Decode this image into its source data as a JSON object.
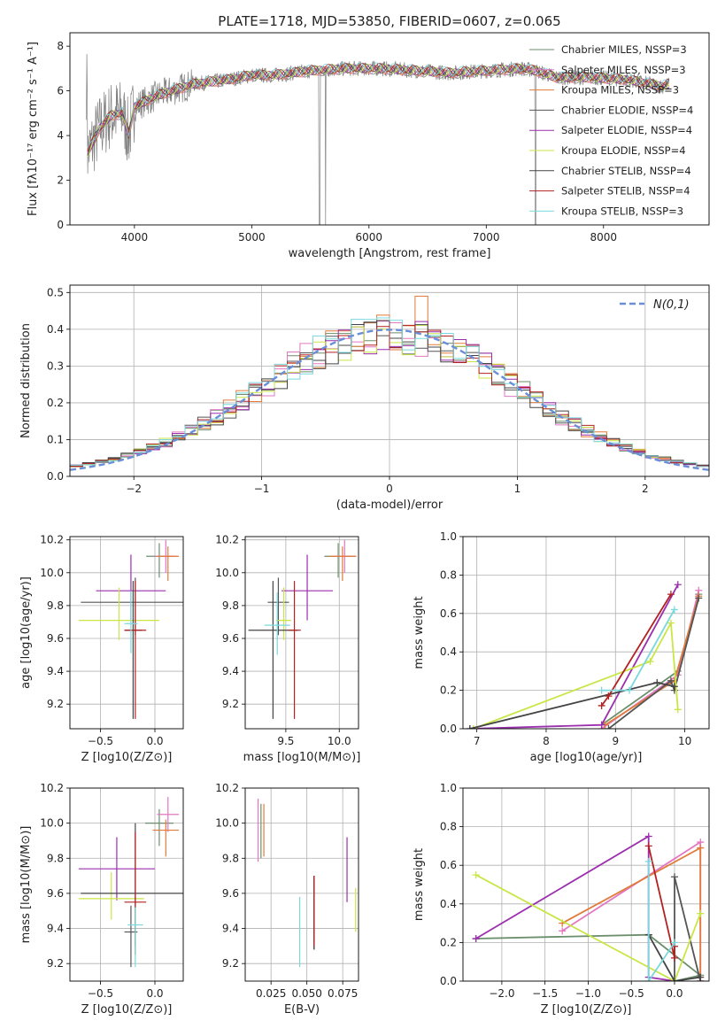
{
  "figure_title": "PLATE=1718, MJD=53850, FIBERID=0607, z=0.065",
  "colors": {
    "series": [
      "#6b8e6b",
      "#e377c2",
      "#e07b39",
      "#555555",
      "#9b2fae",
      "#c8e645",
      "#444444",
      "#b22222",
      "#7ad8dc"
    ],
    "gaussian": "#6a8fd8",
    "data_line": "#7f7f7f",
    "grid": "#b0b0b0"
  },
  "chart_data": [
    {
      "id": "spectrum",
      "type": "line",
      "title": "PLATE=1718, MJD=53850, FIBERID=0607, z=0.065",
      "xlabel": "wavelength [Angstrom, rest frame]",
      "ylabel": "Flux [fλ10⁻¹⁷ erg cm⁻² s⁻¹ A⁻¹]",
      "xlim": [
        3450,
        8900
      ],
      "ylim": [
        0,
        8.6
      ],
      "xticks": [
        4000,
        5000,
        6000,
        7000,
        8000
      ],
      "yticks": [
        0,
        2,
        4,
        6,
        8
      ],
      "grid": false,
      "legend_position": "top-right",
      "legend": [
        {
          "name": "Chabrier MILES, NSSP=3"
        },
        {
          "name": "Salpeter MILES, NSSP=3"
        },
        {
          "name": "Kroupa MILES, NSSP=3"
        },
        {
          "name": "Chabrier ELODIE, NSSP=4"
        },
        {
          "name": "Salpeter ELODIE, NSSP=4"
        },
        {
          "name": "Kroupa ELODIE, NSSP=4"
        },
        {
          "name": "Chabrier STELIB, NSSP=4"
        },
        {
          "name": "Salpeter STELIB, NSSP=4"
        },
        {
          "name": "Kroupa STELIB, NSSP=3"
        }
      ],
      "continuum": [
        [
          3600,
          3.2
        ],
        [
          3700,
          4.3
        ],
        [
          3800,
          4.9
        ],
        [
          3900,
          5.0
        ],
        [
          3950,
          4.0
        ],
        [
          4000,
          5.3
        ],
        [
          4200,
          5.8
        ],
        [
          4500,
          6.3
        ],
        [
          4800,
          6.5
        ],
        [
          5000,
          6.7
        ],
        [
          5200,
          6.7
        ],
        [
          5500,
          6.9
        ],
        [
          5800,
          7.0
        ],
        [
          6100,
          7.0
        ],
        [
          6400,
          6.9
        ],
        [
          6700,
          6.8
        ],
        [
          7000,
          6.9
        ],
        [
          7300,
          7.0
        ],
        [
          7420,
          6.9
        ],
        [
          7600,
          6.6
        ],
        [
          7900,
          6.6
        ],
        [
          8200,
          6.5
        ],
        [
          8500,
          6.2
        ],
        [
          8560,
          6.3
        ]
      ]
    },
    {
      "id": "residuals",
      "type": "histogram",
      "xlabel": "(data-model)/error",
      "ylabel": "Normed distribution",
      "xlim": [
        -2.5,
        2.5
      ],
      "ylim": [
        0,
        0.52
      ],
      "xticks": [
        -2,
        -1,
        0,
        1,
        2
      ],
      "yticks": [
        0.0,
        0.1,
        0.2,
        0.3,
        0.4,
        0.5
      ],
      "grid": true,
      "legend_position": "top-right",
      "legend": [
        {
          "name": "N(0,1)"
        }
      ],
      "bin_width": 0.1,
      "bin_start": -2.5
    },
    {
      "id": "age_vs_Z",
      "type": "errorbar",
      "xlabel": "Z [log10(Z/Z⊙)]",
      "ylabel": "age  [log10(age/yr)]",
      "xlim": [
        -0.78,
        0.26
      ],
      "ylim": [
        9.05,
        10.22
      ],
      "xticks": [
        -0.5,
        0.0
      ],
      "yticks": [
        9.2,
        9.4,
        9.6,
        9.8,
        10.0,
        10.2
      ],
      "grid": true,
      "points": [
        {
          "x": 0.04,
          "y": 10.1,
          "xerr": 0.12,
          "yerr": [
            0.13,
            0.08
          ]
        },
        {
          "x": 0.1,
          "y": 10.1,
          "xerr": 0.1,
          "yerr": [
            0.1,
            0.1
          ]
        },
        {
          "x": 0.12,
          "y": 10.1,
          "xerr": 0.1,
          "yerr": [
            0.15,
            0.06
          ]
        },
        {
          "x": -0.18,
          "y": 9.82,
          "xerr": 0.5,
          "yerr": [
            0.2,
            0.15
          ]
        },
        {
          "x": -0.22,
          "y": 9.89,
          "xerr": 0.32,
          "yerr": [
            0.18,
            0.22
          ]
        },
        {
          "x": -0.33,
          "y": 9.71,
          "xerr": 0.37,
          "yerr": [
            0.12,
            0.2
          ]
        },
        {
          "x": -0.2,
          "y": 9.65,
          "xerr": 0.08,
          "yerr": [
            0.54,
            0.3
          ]
        },
        {
          "x": -0.18,
          "y": 9.65,
          "xerr": 0.1,
          "yerr": [
            0.54,
            0.3
          ]
        },
        {
          "x": -0.22,
          "y": 9.69,
          "xerr": 0.06,
          "yerr": [
            0.18,
            0.2
          ]
        }
      ]
    },
    {
      "id": "age_vs_mass",
      "type": "errorbar",
      "xlabel": "mass [log10(M/M⊙)]",
      "ylabel": "",
      "xlim": [
        9.12,
        10.18
      ],
      "ylim": [
        9.05,
        10.22
      ],
      "xticks": [
        9.5,
        10.0
      ],
      "yticks": [
        9.2,
        9.4,
        9.6,
        9.8,
        10.0,
        10.2
      ],
      "grid": true,
      "points": [
        {
          "x": 9.99,
          "y": 10.1,
          "xerr": 0.13,
          "yerr": [
            0.13,
            0.08
          ]
        },
        {
          "x": 10.05,
          "y": 10.1,
          "xerr": 0.1,
          "yerr": [
            0.1,
            0.1
          ]
        },
        {
          "x": 10.03,
          "y": 10.1,
          "xerr": 0.13,
          "yerr": [
            0.15,
            0.06
          ]
        },
        {
          "x": 9.43,
          "y": 9.82,
          "xerr": 0.1,
          "yerr": [
            0.2,
            0.15
          ]
        },
        {
          "x": 9.7,
          "y": 9.89,
          "xerr": 0.24,
          "yerr": [
            0.18,
            0.22
          ]
        },
        {
          "x": 9.48,
          "y": 9.71,
          "xerr": 0.07,
          "yerr": [
            0.12,
            0.2
          ]
        },
        {
          "x": 9.38,
          "y": 9.65,
          "xerr": 0.23,
          "yerr": [
            0.54,
            0.3
          ]
        },
        {
          "x": 9.58,
          "y": 9.65,
          "xerr": 0.06,
          "yerr": [
            0.54,
            0.3
          ]
        },
        {
          "x": 9.42,
          "y": 9.68,
          "xerr": 0.12,
          "yerr": [
            0.18,
            0.2
          ]
        }
      ]
    },
    {
      "id": "weight_vs_age",
      "type": "line",
      "xlabel": "age  [log10(age/yr)]",
      "ylabel": "mass weight",
      "xlim": [
        6.8,
        10.35
      ],
      "ylim": [
        0.0,
        1.0
      ],
      "xticks": [
        7,
        8,
        9,
        10
      ],
      "yticks": [
        0.0,
        0.2,
        0.4,
        0.6,
        0.8,
        1.0
      ],
      "grid": true,
      "series": [
        {
          "x": [
            8.8,
            9.9,
            10.2
          ],
          "y": [
            0.02,
            0.3,
            0.7
          ]
        },
        {
          "x": [
            8.8,
            9.9,
            10.2
          ],
          "y": [
            0.0,
            0.28,
            0.72
          ]
        },
        {
          "x": [
            8.85,
            9.85,
            10.2
          ],
          "y": [
            0.02,
            0.25,
            0.69
          ]
        },
        {
          "x": [
            8.9,
            9.8,
            9.85,
            10.2
          ],
          "y": [
            0.0,
            0.25,
            0.2,
            0.68
          ]
        },
        {
          "x": [
            6.9,
            8.8,
            9.9
          ],
          "y": [
            0.0,
            0.02,
            0.75
          ]
        },
        {
          "x": [
            6.95,
            9.5,
            9.8,
            9.9
          ],
          "y": [
            0.0,
            0.35,
            0.55,
            0.1
          ]
        },
        {
          "x": [
            6.9,
            9.6,
            9.85
          ],
          "y": [
            0.0,
            0.24,
            0.22
          ]
        },
        {
          "x": [
            8.8,
            8.9,
            9.8
          ],
          "y": [
            0.12,
            0.17,
            0.7
          ]
        },
        {
          "x": [
            8.8,
            9.2,
            9.85
          ],
          "y": [
            0.2,
            0.2,
            0.62
          ]
        }
      ]
    },
    {
      "id": "mass_vs_Z",
      "type": "errorbar",
      "xlabel": "Z [log10(Z/Z⊙)]",
      "ylabel": "mass [log10(M/M⊙)]",
      "xlim": [
        -0.78,
        0.26
      ],
      "ylim": [
        9.1,
        10.2
      ],
      "xticks": [
        -0.5,
        0.0
      ],
      "yticks": [
        9.2,
        9.4,
        9.6,
        9.8,
        10.0,
        10.2
      ],
      "grid": true,
      "points": [
        {
          "x": 0.04,
          "y": 10.0,
          "xerr": 0.13,
          "yerr": [
            0.13,
            0.08
          ]
        },
        {
          "x": 0.12,
          "y": 10.05,
          "xerr": 0.1,
          "yerr": [
            0.1,
            0.1
          ]
        },
        {
          "x": 0.1,
          "y": 9.96,
          "xerr": 0.12,
          "yerr": [
            0.15,
            0.06
          ]
        },
        {
          "x": -0.22,
          "y": 9.38,
          "xerr": 0.06,
          "yerr": [
            0.2,
            0.15
          ]
        },
        {
          "x": -0.35,
          "y": 9.74,
          "xerr": 0.35,
          "yerr": [
            0.18,
            0.18
          ]
        },
        {
          "x": -0.4,
          "y": 9.57,
          "xerr": 0.3,
          "yerr": [
            0.12,
            0.15
          ]
        },
        {
          "x": -0.18,
          "y": 9.6,
          "xerr": 0.5,
          "yerr": [
            0.3,
            0.4
          ]
        },
        {
          "x": -0.18,
          "y": 9.55,
          "xerr": 0.1,
          "yerr": [
            0.3,
            0.4
          ]
        },
        {
          "x": -0.18,
          "y": 9.42,
          "xerr": 0.07,
          "yerr": [
            0.24,
            0.1
          ]
        }
      ]
    },
    {
      "id": "mass_vs_ebv",
      "type": "errorbar",
      "xlabel": "E(B-V)",
      "ylabel": "",
      "xlim": [
        0.007,
        0.086
      ],
      "ylim": [
        9.1,
        10.2
      ],
      "xticks": [
        0.025,
        0.05,
        0.075
      ],
      "yticks": [
        9.2,
        9.4,
        9.6,
        9.8,
        10.0,
        10.2
      ],
      "grid": true,
      "points": [
        {
          "x": 0.018,
          "y": 9.98,
          "xerr": 0,
          "yerr": [
            0.18,
            0.13
          ]
        },
        {
          "x": 0.016,
          "y": 9.98,
          "xerr": 0,
          "yerr": [
            0.2,
            0.16
          ]
        },
        {
          "x": 0.02,
          "y": 9.98,
          "xerr": 0,
          "yerr": [
            0.17,
            0.13
          ]
        },
        {
          "x": 0.055,
          "y": 9.55,
          "xerr": 0,
          "yerr": [
            0.27,
            0.15
          ]
        },
        {
          "x": 0.078,
          "y": 9.76,
          "xerr": 0,
          "yerr": [
            0.21,
            0.16
          ]
        },
        {
          "x": 0.084,
          "y": 9.5,
          "xerr": 0,
          "yerr": [
            0.12,
            0.13
          ]
        },
        {
          "x": 0.055,
          "y": 9.5,
          "xerr": 0,
          "yerr": [
            0.22,
            0.2
          ]
        },
        {
          "x": 0.055,
          "y": 9.5,
          "xerr": 0,
          "yerr": [
            0.2,
            0.2
          ]
        },
        {
          "x": 0.045,
          "y": 9.38,
          "xerr": 0,
          "yerr": [
            0.2,
            0.2
          ]
        }
      ]
    },
    {
      "id": "weight_vs_Z",
      "type": "line",
      "xlabel": "Z [log10(Z/Z⊙)]",
      "ylabel": "mass weight",
      "xlim": [
        -2.45,
        0.4
      ],
      "ylim": [
        0.0,
        1.0
      ],
      "xticks": [
        -2.0,
        -1.5,
        -1.0,
        -0.5,
        0.0
      ],
      "yticks": [
        0.0,
        0.2,
        0.4,
        0.6,
        0.8,
        1.0
      ],
      "grid": true,
      "series": [
        {
          "x": [
            -2.3,
            -0.3,
            0.3,
            0.0
          ],
          "y": [
            0.22,
            0.24,
            0.03,
            0.0
          ]
        },
        {
          "x": [
            -1.3,
            0.3,
            0.3
          ],
          "y": [
            0.26,
            0.72,
            0.0
          ]
        },
        {
          "x": [
            -1.3,
            0.3,
            0.3
          ],
          "y": [
            0.3,
            0.69,
            0.0
          ]
        },
        {
          "x": [
            0.0,
            0.0,
            0.3
          ],
          "y": [
            0.0,
            0.54,
            0.0
          ]
        },
        {
          "x": [
            -2.3,
            -0.3,
            -0.3,
            0.0
          ],
          "y": [
            0.22,
            0.75,
            0.02,
            0.0
          ]
        },
        {
          "x": [
            -2.3,
            0.0,
            0.3
          ],
          "y": [
            0.55,
            0.0,
            0.35
          ]
        },
        {
          "x": [
            -0.3,
            0.0,
            0.3
          ],
          "y": [
            0.24,
            0.0,
            0.02
          ]
        },
        {
          "x": [
            -0.3,
            0.0,
            0.0
          ],
          "y": [
            0.7,
            0.12,
            0.18
          ]
        },
        {
          "x": [
            -0.3,
            -0.3,
            0.0
          ],
          "y": [
            0.62,
            0.0,
            0.2
          ]
        }
      ]
    }
  ]
}
